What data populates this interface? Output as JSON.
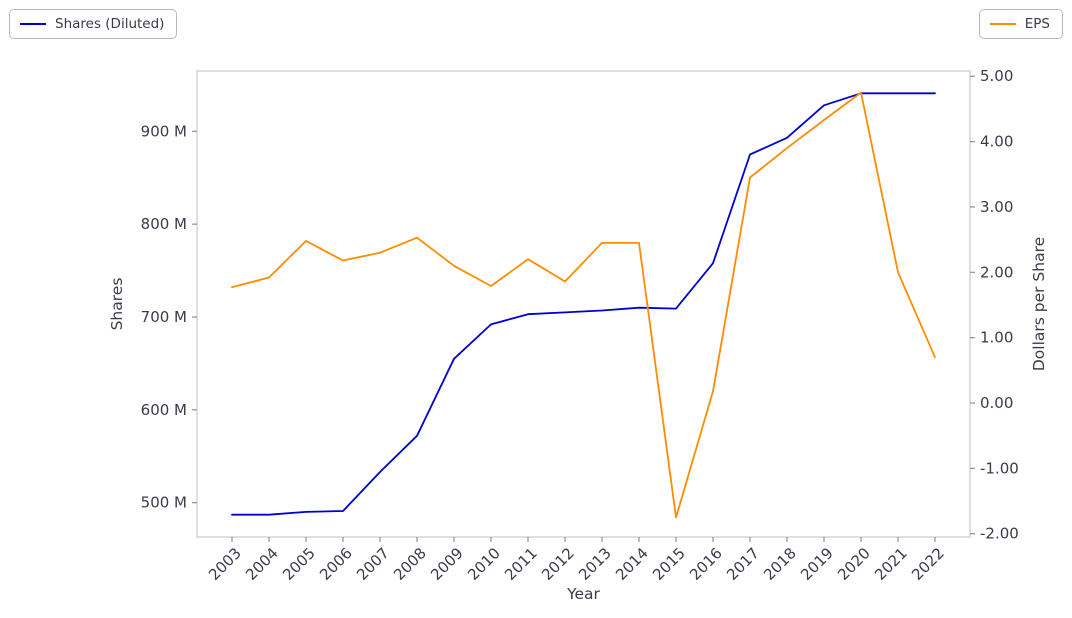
{
  "legend_left": {
    "label": "Shares (Diluted)"
  },
  "legend_right": {
    "label": "EPS"
  },
  "chart_data": {
    "type": "line",
    "title": "",
    "xlabel": "Year",
    "ylabel_left": "Shares",
    "ylabel_right": "Dollars per Share",
    "x": [
      2003,
      2004,
      2005,
      2006,
      2007,
      2008,
      2009,
      2010,
      2011,
      2012,
      2013,
      2014,
      2015,
      2016,
      2017,
      2018,
      2019,
      2020,
      2021,
      2022
    ],
    "x_tick_labels": [
      "2003",
      "2004",
      "2005",
      "2006",
      "2007",
      "2008",
      "2009",
      "2010",
      "2011",
      "2012",
      "2013",
      "2014",
      "2015",
      "2016",
      "2017",
      "2018",
      "2019",
      "2020",
      "2021",
      "2022"
    ],
    "series": [
      {
        "name": "Shares (Diluted)",
        "axis": "left",
        "color": "#0000cd",
        "values": [
          487,
          487,
          490,
          491,
          533,
          572,
          655,
          692,
          703,
          705,
          707,
          710,
          709,
          758,
          875,
          893,
          928,
          941,
          941,
          941
        ]
      },
      {
        "name": "EPS",
        "axis": "right",
        "color": "#ff8c00",
        "values": [
          1.77,
          1.92,
          2.48,
          2.18,
          2.3,
          2.53,
          2.1,
          1.79,
          2.2,
          1.86,
          2.45,
          2.45,
          -1.75,
          0.18,
          3.45,
          3.9,
          4.33,
          4.75,
          2.0,
          0.7
        ]
      }
    ],
    "left_ticks": [
      500,
      600,
      700,
      800,
      900
    ],
    "left_tick_labels": [
      "500 M",
      "600 M",
      "700 M",
      "800 M",
      "900 M"
    ],
    "left_ylim": [
      463,
      965
    ],
    "right_ticks": [
      -2,
      -1,
      0,
      1,
      2,
      3,
      4,
      5
    ],
    "right_tick_labels": [
      "-2.00",
      "-1.00",
      "0.00",
      "1.00",
      "2.00",
      "3.00",
      "4.00",
      "5.00"
    ],
    "right_ylim": [
      -2.05,
      5.08
    ],
    "grid": false,
    "legend_position": "outside-top-corners"
  }
}
